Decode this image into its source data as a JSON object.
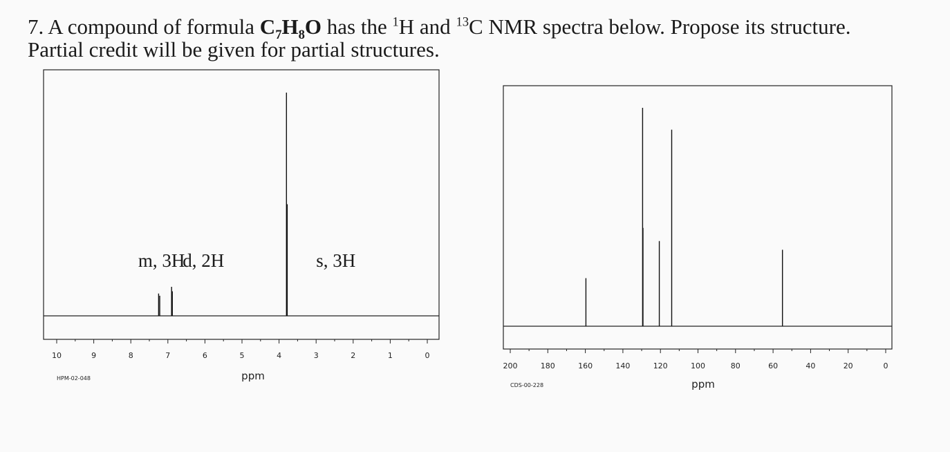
{
  "question": {
    "number_prefix": "7. A compound of formula ",
    "formula": {
      "C": "C",
      "c_sub": "7",
      "H": "H",
      "h_sub": "8",
      "O": "O"
    },
    "mid_text": " has the ",
    "h_sup": "1",
    "h_text": "H and ",
    "c_sup": "13",
    "end_text": "C NMR spectra below. Propose its structure.",
    "line2": "Partial credit will be given for partial structures."
  },
  "chart_data": [
    {
      "type": "line",
      "xlabel": "ppm",
      "code": "HPM-02-048",
      "xlim": [
        10,
        0
      ],
      "x_ticks": [
        "10",
        "9",
        "8",
        "7",
        "6",
        "5",
        "4",
        "3",
        "2",
        "1",
        "0"
      ],
      "peaks": [
        {
          "x": 7.25,
          "height": 0.1
        },
        {
          "x": 7.22,
          "height": 0.09
        },
        {
          "x": 6.9,
          "height": 0.13
        },
        {
          "x": 6.88,
          "height": 0.11
        },
        {
          "x": 3.8,
          "height": 1.0
        },
        {
          "x": 3.78,
          "height": 0.5
        }
      ],
      "annotations": [
        {
          "text": "m, 3H",
          "x": 7.8
        },
        {
          "text": "d, 2H",
          "x": 6.6
        },
        {
          "text": "s, 3H",
          "x": 3.0
        }
      ]
    },
    {
      "type": "line",
      "xlabel": "ppm",
      "code": "CDS-00-228",
      "xlim": [
        200,
        0
      ],
      "x_ticks": [
        "200",
        "180",
        "160",
        "140",
        "120",
        "100",
        "80",
        "60",
        "40",
        "20",
        "0"
      ],
      "peaks": [
        {
          "x": 159.7,
          "height": 0.22
        },
        {
          "x": 129.5,
          "height": 1.0
        },
        {
          "x": 129.3,
          "height": 0.45
        },
        {
          "x": 120.6,
          "height": 0.39
        },
        {
          "x": 114.0,
          "height": 0.9
        },
        {
          "x": 55.0,
          "height": 0.35
        }
      ]
    }
  ]
}
